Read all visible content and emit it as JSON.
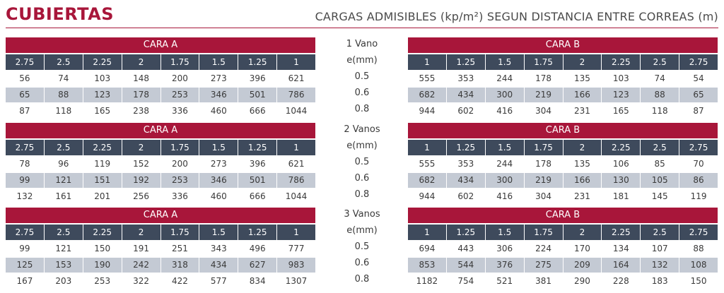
{
  "title": "CUBIERTAS",
  "subtitle": "CARGAS ADMISIBLES (kp/m²) SEGUN DISTANCIA ENTRE CORREAS (m)",
  "colors": {
    "accent": "#a8163a",
    "header_dark": "#3e4a5c",
    "row_shade": "#c4cad4"
  },
  "sections": [
    {
      "vanos": "1 Vano",
      "e_label": "e(mm)",
      "a": {
        "header": "CARA A",
        "columns": [
          "2.75",
          "2.5",
          "2.25",
          "2",
          "1.75",
          "1.5",
          "1.25",
          "1"
        ],
        "rows": [
          {
            "e": "0.5",
            "values": [
              "56",
              "74",
              "103",
              "148",
              "200",
              "273",
              "396",
              "621"
            ]
          },
          {
            "e": "0.6",
            "values": [
              "65",
              "88",
              "123",
              "178",
              "253",
              "346",
              "501",
              "786"
            ]
          },
          {
            "e": "0.8",
            "values": [
              "87",
              "118",
              "165",
              "238",
              "336",
              "460",
              "666",
              "1044"
            ]
          }
        ]
      },
      "b": {
        "header": "CARA B",
        "columns": [
          "1",
          "1.25",
          "1.5",
          "1.75",
          "2",
          "2.25",
          "2.5",
          "2.75"
        ],
        "rows": [
          {
            "values": [
              "555",
              "353",
              "244",
              "178",
              "135",
              "103",
              "74",
              "54"
            ]
          },
          {
            "values": [
              "682",
              "434",
              "300",
              "219",
              "166",
              "123",
              "88",
              "65"
            ]
          },
          {
            "values": [
              "944",
              "602",
              "416",
              "304",
              "231",
              "165",
              "118",
              "87"
            ]
          }
        ]
      }
    },
    {
      "vanos": "2 Vanos",
      "e_label": "e(mm)",
      "a": {
        "header": "CARA A",
        "columns": [
          "2.75",
          "2.5",
          "2.25",
          "2",
          "1.75",
          "1.5",
          "1.25",
          "1"
        ],
        "rows": [
          {
            "e": "0.5",
            "values": [
              "78",
              "96",
              "119",
              "152",
              "200",
              "273",
              "396",
              "621"
            ]
          },
          {
            "e": "0.6",
            "values": [
              "99",
              "121",
              "151",
              "192",
              "253",
              "346",
              "501",
              "786"
            ]
          },
          {
            "e": "0.8",
            "values": [
              "132",
              "161",
              "201",
              "256",
              "336",
              "460",
              "666",
              "1044"
            ]
          }
        ]
      },
      "b": {
        "header": "CARA B",
        "columns": [
          "1",
          "1.25",
          "1.5",
          "1.75",
          "2",
          "2.25",
          "2.5",
          "2.75"
        ],
        "rows": [
          {
            "values": [
              "555",
              "353",
              "244",
              "178",
              "135",
              "106",
              "85",
              "70"
            ]
          },
          {
            "values": [
              "682",
              "434",
              "300",
              "219",
              "166",
              "130",
              "105",
              "86"
            ]
          },
          {
            "values": [
              "944",
              "602",
              "416",
              "304",
              "231",
              "181",
              "145",
              "119"
            ]
          }
        ]
      }
    },
    {
      "vanos": "3 Vanos",
      "e_label": "e(mm)",
      "a": {
        "header": "CARA A",
        "columns": [
          "2.75",
          "2.5",
          "2.25",
          "2",
          "1.75",
          "1.5",
          "1.25",
          "1"
        ],
        "rows": [
          {
            "e": "0.5",
            "values": [
              "99",
              "121",
              "150",
              "191",
              "251",
              "343",
              "496",
              "777"
            ]
          },
          {
            "e": "0.6",
            "values": [
              "125",
              "153",
              "190",
              "242",
              "318",
              "434",
              "627",
              "983"
            ]
          },
          {
            "e": "0.8",
            "values": [
              "167",
              "203",
              "253",
              "322",
              "422",
              "577",
              "834",
              "1307"
            ]
          }
        ]
      },
      "b": {
        "header": "CARA B",
        "columns": [
          "1",
          "1.25",
          "1.5",
          "1.75",
          "2",
          "2.25",
          "2.5",
          "2.75"
        ],
        "rows": [
          {
            "values": [
              "694",
              "443",
              "306",
              "224",
              "170",
              "134",
              "107",
              "88"
            ]
          },
          {
            "values": [
              "853",
              "544",
              "376",
              "275",
              "209",
              "164",
              "132",
              "108"
            ]
          },
          {
            "values": [
              "1182",
              "754",
              "521",
              "381",
              "290",
              "228",
              "183",
              "150"
            ]
          }
        ]
      }
    }
  ]
}
